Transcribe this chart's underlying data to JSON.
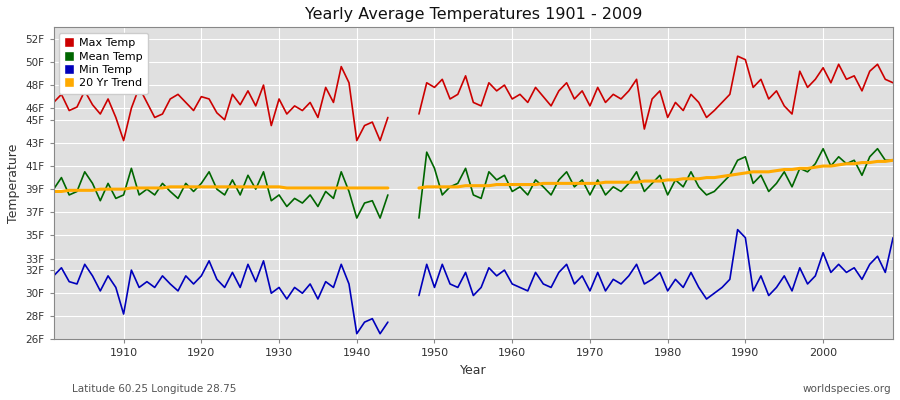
{
  "title": "Yearly Average Temperatures 1901 - 2009",
  "xlabel": "Year",
  "ylabel": "Temperature",
  "footnote_left": "Latitude 60.25 Longitude 28.75",
  "footnote_right": "worldspecies.org",
  "ylim": [
    26,
    53
  ],
  "xlim": [
    1901,
    2009
  ],
  "fig_bg_color": "#ffffff",
  "plot_bg_color": "#e0e0e0",
  "grid_color": "#ffffff",
  "colors": {
    "max": "#cc0000",
    "mean": "#006600",
    "min": "#0000bb",
    "trend": "#ffaa00"
  },
  "legend": [
    {
      "label": "Max Temp",
      "color": "#cc0000"
    },
    {
      "label": "Mean Temp",
      "color": "#006600"
    },
    {
      "label": "Min Temp",
      "color": "#0000bb"
    },
    {
      "label": "20 Yr Trend",
      "color": "#ffaa00"
    }
  ],
  "ytick_vals": [
    26,
    28,
    30,
    32,
    33,
    35,
    37,
    39,
    41,
    43,
    45,
    46,
    48,
    50,
    52
  ],
  "ytick_labels": [
    "26F",
    "28F",
    "30F",
    "32F",
    "33F",
    "35F",
    "37F",
    "39F",
    "41F",
    "43F",
    "45F",
    "46F",
    "48F",
    "50F",
    "52F"
  ],
  "xtick_vals": [
    1910,
    1920,
    1930,
    1940,
    1950,
    1960,
    1970,
    1980,
    1990,
    2000
  ],
  "years": [
    1901,
    1902,
    1903,
    1904,
    1905,
    1906,
    1907,
    1908,
    1909,
    1910,
    1911,
    1912,
    1913,
    1914,
    1915,
    1916,
    1917,
    1918,
    1919,
    1920,
    1921,
    1922,
    1923,
    1924,
    1925,
    1926,
    1927,
    1928,
    1929,
    1930,
    1931,
    1932,
    1933,
    1934,
    1935,
    1936,
    1937,
    1938,
    1939,
    1940,
    1941,
    1942,
    1943,
    1944,
    1948,
    1949,
    1950,
    1951,
    1952,
    1953,
    1954,
    1955,
    1956,
    1957,
    1958,
    1959,
    1960,
    1961,
    1962,
    1963,
    1964,
    1965,
    1966,
    1967,
    1968,
    1969,
    1970,
    1971,
    1972,
    1973,
    1974,
    1975,
    1976,
    1977,
    1978,
    1979,
    1980,
    1981,
    1982,
    1983,
    1984,
    1985,
    1986,
    1987,
    1988,
    1989,
    1990,
    1991,
    1992,
    1993,
    1994,
    1995,
    1996,
    1997,
    1998,
    1999,
    2000,
    2001,
    2002,
    2003,
    2004,
    2005,
    2006,
    2007,
    2008,
    2009
  ],
  "max_temp": [
    46.5,
    47.2,
    45.8,
    46.1,
    47.5,
    46.3,
    45.5,
    46.8,
    45.2,
    43.2,
    46.0,
    47.8,
    46.5,
    45.2,
    45.5,
    46.8,
    47.2,
    46.5,
    45.8,
    47.0,
    46.8,
    45.6,
    45.0,
    47.2,
    46.3,
    47.5,
    46.2,
    48.0,
    44.5,
    46.8,
    45.5,
    46.2,
    45.8,
    46.5,
    45.2,
    47.8,
    46.5,
    49.6,
    48.2,
    43.2,
    44.5,
    44.8,
    43.2,
    45.2,
    45.5,
    48.2,
    47.8,
    48.5,
    46.8,
    47.2,
    48.8,
    46.5,
    46.2,
    48.2,
    47.5,
    48.0,
    46.8,
    47.2,
    46.5,
    47.8,
    47.0,
    46.2,
    47.5,
    48.2,
    46.8,
    47.5,
    46.2,
    47.8,
    46.5,
    47.2,
    46.8,
    47.5,
    48.5,
    44.2,
    46.8,
    47.5,
    45.2,
    46.5,
    45.8,
    47.2,
    46.5,
    45.2,
    45.8,
    46.5,
    47.2,
    50.5,
    50.2,
    47.8,
    48.5,
    46.8,
    47.5,
    46.2,
    45.5,
    49.2,
    47.8,
    48.5,
    49.5,
    48.2,
    49.8,
    48.5,
    48.8,
    47.5,
    49.2,
    49.8,
    48.5,
    48.2
  ],
  "mean_temp": [
    39.0,
    40.0,
    38.5,
    38.8,
    40.5,
    39.5,
    38.0,
    39.5,
    38.2,
    38.5,
    40.8,
    38.5,
    39.0,
    38.5,
    39.5,
    38.8,
    38.2,
    39.5,
    38.8,
    39.5,
    40.5,
    39.0,
    38.5,
    39.8,
    38.5,
    40.2,
    39.0,
    40.5,
    38.0,
    38.5,
    37.5,
    38.2,
    37.8,
    38.5,
    37.5,
    38.8,
    38.2,
    40.5,
    38.8,
    36.5,
    37.8,
    38.0,
    36.5,
    38.5,
    36.5,
    42.2,
    40.8,
    38.5,
    39.2,
    39.5,
    40.8,
    38.5,
    38.2,
    40.5,
    39.8,
    40.2,
    38.8,
    39.2,
    38.5,
    39.8,
    39.2,
    38.5,
    39.8,
    40.5,
    39.2,
    39.8,
    38.5,
    39.8,
    38.5,
    39.2,
    38.8,
    39.5,
    40.5,
    38.8,
    39.5,
    40.2,
    38.5,
    39.8,
    39.2,
    40.5,
    39.2,
    38.5,
    38.8,
    39.5,
    40.2,
    41.5,
    41.8,
    39.5,
    40.2,
    38.8,
    39.5,
    40.5,
    39.2,
    40.8,
    40.5,
    41.2,
    42.5,
    41.0,
    41.8,
    41.2,
    41.5,
    40.2,
    41.8,
    42.5,
    41.5,
    41.5
  ],
  "min_temp": [
    31.5,
    32.2,
    31.0,
    30.8,
    32.5,
    31.5,
    30.2,
    31.5,
    30.5,
    28.2,
    32.0,
    30.5,
    31.0,
    30.5,
    31.5,
    30.8,
    30.2,
    31.5,
    30.8,
    31.5,
    32.8,
    31.2,
    30.5,
    31.8,
    30.5,
    32.5,
    31.0,
    32.8,
    30.0,
    30.5,
    29.5,
    30.5,
    30.0,
    30.8,
    29.5,
    31.0,
    30.5,
    32.5,
    30.8,
    26.5,
    27.5,
    27.8,
    26.5,
    27.5,
    29.8,
    32.5,
    30.5,
    32.5,
    30.8,
    30.5,
    31.8,
    29.8,
    30.5,
    32.2,
    31.5,
    32.0,
    30.8,
    30.5,
    30.2,
    31.8,
    30.8,
    30.5,
    31.8,
    32.5,
    30.8,
    31.5,
    30.2,
    31.8,
    30.2,
    31.2,
    30.8,
    31.5,
    32.5,
    30.8,
    31.2,
    31.8,
    30.2,
    31.2,
    30.5,
    31.8,
    30.5,
    29.5,
    30.0,
    30.5,
    31.2,
    35.5,
    34.8,
    30.2,
    31.5,
    29.8,
    30.5,
    31.5,
    30.2,
    32.2,
    30.8,
    31.5,
    33.5,
    31.8,
    32.5,
    31.8,
    32.2,
    31.2,
    32.5,
    33.2,
    31.8,
    34.8
  ],
  "trend_vals": [
    38.8,
    38.8,
    38.9,
    38.9,
    38.9,
    38.9,
    39.0,
    39.0,
    39.0,
    39.0,
    39.1,
    39.1,
    39.1,
    39.1,
    39.1,
    39.2,
    39.2,
    39.2,
    39.2,
    39.2,
    39.2,
    39.2,
    39.2,
    39.2,
    39.2,
    39.2,
    39.2,
    39.2,
    39.2,
    39.2,
    39.1,
    39.1,
    39.1,
    39.1,
    39.1,
    39.1,
    39.1,
    39.1,
    39.1,
    39.1,
    39.1,
    39.1,
    39.1,
    39.1,
    39.1,
    39.2,
    39.2,
    39.2,
    39.2,
    39.2,
    39.3,
    39.3,
    39.3,
    39.3,
    39.4,
    39.4,
    39.4,
    39.4,
    39.4,
    39.4,
    39.5,
    39.5,
    39.5,
    39.5,
    39.5,
    39.5,
    39.5,
    39.5,
    39.6,
    39.6,
    39.6,
    39.6,
    39.6,
    39.7,
    39.7,
    39.7,
    39.8,
    39.8,
    39.9,
    39.9,
    39.9,
    40.0,
    40.0,
    40.1,
    40.2,
    40.3,
    40.4,
    40.5,
    40.5,
    40.5,
    40.6,
    40.7,
    40.7,
    40.8,
    40.8,
    40.9,
    41.0,
    41.0,
    41.1,
    41.2,
    41.2,
    41.3,
    41.3,
    41.4,
    41.4,
    41.5
  ]
}
